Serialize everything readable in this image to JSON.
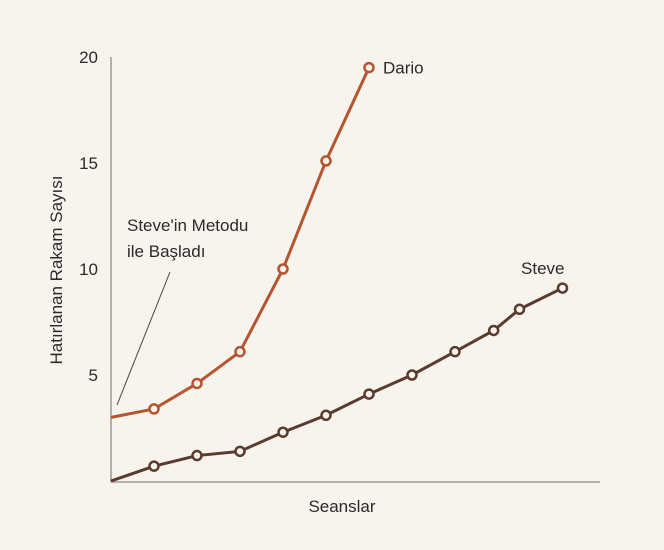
{
  "chart_data": {
    "type": "line",
    "title": "",
    "xlabel": "Seanslar",
    "ylabel": "Hatırlanan Rakam Sayısı",
    "ylim": [
      0,
      20
    ],
    "xlim": [
      0,
      11.3
    ],
    "yticks": [
      "5",
      "10",
      "15",
      "20"
    ],
    "ytick_values": [
      5,
      10,
      15,
      20
    ],
    "grid": false,
    "annotation": {
      "lines": [
        "Steve'in Metodu",
        "ile Başladı"
      ],
      "target": {
        "x": 0,
        "y": 3
      }
    },
    "series": [
      {
        "name": "Dario",
        "color": "#b5552f",
        "x": [
          0,
          1,
          2,
          3,
          4,
          5,
          6
        ],
        "y": [
          3,
          3.4,
          4.6,
          6.1,
          10,
          15.1,
          19.5
        ],
        "markers_from": 1
      },
      {
        "name": "Steve",
        "color": "#5a3b2e",
        "x": [
          0,
          1,
          2,
          3,
          4,
          5,
          6,
          7,
          8,
          8.9,
          9.5,
          10.5
        ],
        "y": [
          0,
          0.7,
          1.2,
          1.4,
          2.3,
          3.1,
          4.1,
          5,
          6.1,
          7.1,
          8.1,
          9.1
        ],
        "markers_from": 1
      }
    ]
  }
}
